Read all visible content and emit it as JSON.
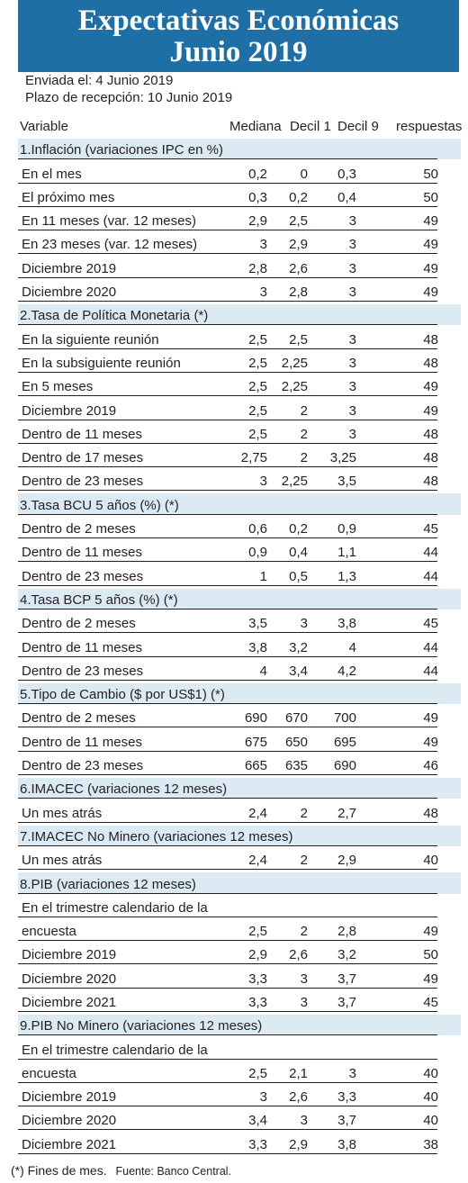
{
  "title": {
    "line1": "Expectativas Económicas",
    "line2": "Junio 2019"
  },
  "meta": {
    "sent": "Enviada el: 4 Junio 2019",
    "deadline": "Plazo de recepción: 10 Junio 2019"
  },
  "columns": {
    "variable": "Variable",
    "median": "Mediana",
    "d1": "Decil 1",
    "d9": "Decil 9",
    "responses": "respuestas"
  },
  "rows": [
    {
      "type": "section",
      "label": "1.Inflación (variaciones IPC en %)"
    },
    {
      "type": "data",
      "label": "En el mes",
      "values": [
        "0,2",
        "0",
        "0,3",
        "50"
      ]
    },
    {
      "type": "data",
      "label": "El próximo mes",
      "values": [
        "0,3",
        "0,2",
        "0,4",
        "50"
      ]
    },
    {
      "type": "data",
      "label": "En 11 meses (var. 12 meses)",
      "values": [
        "2,9",
        "2,5",
        "3",
        "49"
      ]
    },
    {
      "type": "data",
      "label": "En 23 meses (var. 12 meses)",
      "values": [
        "3",
        "2,9",
        "3",
        "49"
      ]
    },
    {
      "type": "data",
      "label": "Diciembre 2019",
      "values": [
        "2,8",
        "2,6",
        "3",
        "49"
      ]
    },
    {
      "type": "data",
      "label": "Diciembre 2020",
      "values": [
        "3",
        "2,8",
        "3",
        "49"
      ]
    },
    {
      "type": "section",
      "label": "2.Tasa de Política Monetaria  (*)"
    },
    {
      "type": "data",
      "label": "En la siguiente reunión",
      "values": [
        "2,5",
        "2,5",
        "3",
        "48"
      ]
    },
    {
      "type": "data",
      "label": "En la subsiguiente reunión",
      "values": [
        "2,5",
        "2,25",
        "3",
        "48"
      ]
    },
    {
      "type": "data",
      "label": "En 5 meses",
      "values": [
        "2,5",
        "2,25",
        "3",
        "49"
      ]
    },
    {
      "type": "data",
      "label": "Diciembre 2019",
      "values": [
        "2,5",
        "2",
        "3",
        "49"
      ]
    },
    {
      "type": "data",
      "label": "Dentro de 11 meses",
      "values": [
        "2,5",
        "2",
        "3",
        "48"
      ]
    },
    {
      "type": "data",
      "label": "Dentro de 17 meses",
      "values": [
        "2,75",
        "2",
        "3,25",
        "48"
      ]
    },
    {
      "type": "data",
      "label": "Dentro de 23 meses",
      "values": [
        "3",
        "2,25",
        "3,5",
        "48"
      ]
    },
    {
      "type": "section",
      "label": "3.Tasa BCU 5 años  (%)  (*)"
    },
    {
      "type": "data",
      "label": "Dentro de 2 meses",
      "values": [
        "0,6",
        "0,2",
        "0,9",
        "45"
      ]
    },
    {
      "type": "data",
      "label": "Dentro de 11 meses",
      "values": [
        "0,9",
        "0,4",
        "1,1",
        "44"
      ]
    },
    {
      "type": "data",
      "label": "Dentro de 23 meses",
      "values": [
        "1",
        "0,5",
        "1,3",
        "44"
      ]
    },
    {
      "type": "section",
      "label": "4.Tasa BCP 5 años  (%) (*)"
    },
    {
      "type": "data",
      "label": "Dentro de 2 meses",
      "values": [
        "3,5",
        "3",
        "3,8",
        "45"
      ]
    },
    {
      "type": "data",
      "label": "Dentro de 11 meses",
      "values": [
        "3,8",
        "3,2",
        "4",
        "44"
      ]
    },
    {
      "type": "data",
      "label": "Dentro de 23 meses",
      "values": [
        "4",
        "3,4",
        "4,2",
        "44"
      ]
    },
    {
      "type": "section",
      "label": "5.Tipo de Cambio  ($ por US$1) (*)"
    },
    {
      "type": "data",
      "label": "Dentro de 2 meses",
      "values": [
        "690",
        "670",
        "700",
        "49"
      ]
    },
    {
      "type": "data",
      "label": "Dentro de 11 meses",
      "values": [
        "675",
        "650",
        "695",
        "49"
      ]
    },
    {
      "type": "data",
      "label": "Dentro de 23 meses",
      "values": [
        "665",
        "635",
        "690",
        "46"
      ]
    },
    {
      "type": "section",
      "label": "6.IMACEC  (variaciones 12 meses)"
    },
    {
      "type": "data",
      "label": "Un mes atrás",
      "values": [
        "2,4",
        "2",
        "2,7",
        "48"
      ]
    },
    {
      "type": "section",
      "label": "7.IMACEC No Minero (variaciones 12 meses)"
    },
    {
      "type": "data",
      "label": "Un mes atrás",
      "values": [
        "2,4",
        "2",
        "2,9",
        "40"
      ]
    },
    {
      "type": "section",
      "label": "8.PIB  (variaciones 12 meses)"
    },
    {
      "type": "data",
      "label": "En el trimestre calendario de la",
      "values": [
        "",
        "",
        "",
        ""
      ]
    },
    {
      "type": "data",
      "label": "encuesta",
      "values": [
        "2,5",
        "2",
        "2,8",
        "49"
      ]
    },
    {
      "type": "data",
      "label": "Diciembre 2019",
      "values": [
        "2,9",
        "2,6",
        "3,2",
        "50"
      ]
    },
    {
      "type": "data",
      "label": "Diciembre 2020",
      "values": [
        "3,3",
        "3",
        "3,7",
        "49"
      ]
    },
    {
      "type": "data",
      "label": "Diciembre 2021",
      "values": [
        "3,3",
        "3",
        "3,7",
        "45"
      ]
    },
    {
      "type": "section",
      "label": "9.PIB No Minero (variaciones 12 meses)"
    },
    {
      "type": "data",
      "label": "En el trimestre calendario de la",
      "values": [
        "",
        "",
        "",
        ""
      ]
    },
    {
      "type": "data",
      "label": "encuesta",
      "values": [
        "2,5",
        "2,1",
        "3",
        "40"
      ]
    },
    {
      "type": "data",
      "label": "Diciembre 2019",
      "values": [
        "3",
        "2,6",
        "3,3",
        "40"
      ]
    },
    {
      "type": "data",
      "label": "Diciembre 2020",
      "values": [
        "3,4",
        "3",
        "3,7",
        "40"
      ]
    },
    {
      "type": "data",
      "label": "Diciembre 2021",
      "values": [
        "3,3",
        "2,9",
        "3,8",
        "38"
      ]
    }
  ],
  "footer": {
    "note": "(*) Fines de mes.",
    "source": "Fuente: Banco Central."
  }
}
